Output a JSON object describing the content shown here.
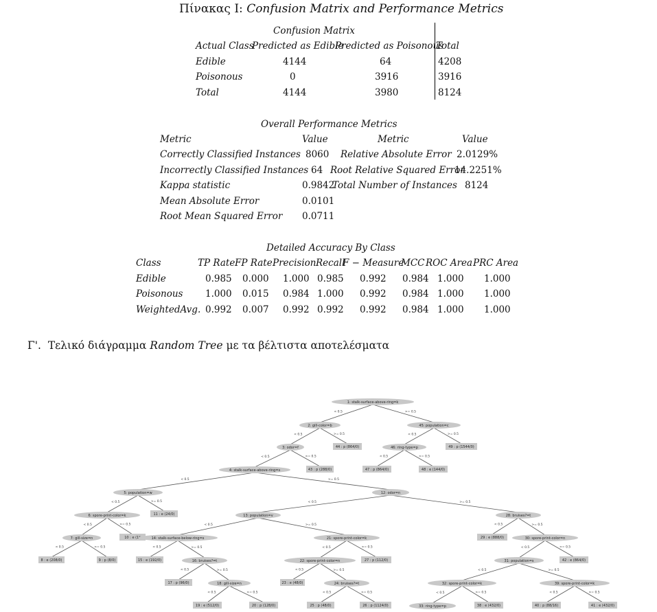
{
  "table_title": {
    "prefix": "Πίνακας I: ",
    "text": "Confusion Matrix and Performance Metrics"
  },
  "confusion": {
    "title": "Confusion Matrix",
    "headers": [
      "Actual Class",
      "Predicted as Edible",
      "Predicted as Poisonous",
      "Total"
    ],
    "rows": [
      [
        "Edible",
        "4144",
        "64",
        "4208"
      ],
      [
        "Poisonous",
        "0",
        "3916",
        "3916"
      ],
      [
        "Total",
        "4144",
        "3980",
        "8124"
      ]
    ]
  },
  "overall": {
    "title": "Overall Performance Metrics",
    "headers": [
      "Metric",
      "Value",
      "Metric",
      "Value"
    ],
    "left": [
      [
        "Correctly Classified Instances",
        "8060"
      ],
      [
        "Incorrectly Classified Instances",
        "64"
      ],
      [
        "Kappa statistic",
        "0.9842"
      ],
      [
        "Mean Absolute Error",
        "0.0101"
      ],
      [
        "Root Mean Squared Error",
        "0.0711"
      ]
    ],
    "right": [
      [
        "Relative Absolute Error",
        "2.0129%"
      ],
      [
        "Root Relative Squared Error",
        "14.2251%"
      ],
      [
        "Total Number of Instances",
        "8124"
      ]
    ]
  },
  "detailed": {
    "title": "Detailed Accuracy By Class",
    "headers": [
      "Class",
      "TP Rate",
      "FP Rate",
      "Precision",
      "Recall",
      "F − Measure",
      "MCC",
      "ROC Area",
      "PRC Area"
    ],
    "rows": [
      [
        "Edible",
        "0.985",
        "0.000",
        "1.000",
        "0.985",
        "0.992",
        "0.984",
        "1.000",
        "1.000"
      ],
      [
        "Poisonous",
        "1.000",
        "0.015",
        "0.984",
        "1.000",
        "0.992",
        "0.984",
        "1.000",
        "1.000"
      ],
      [
        "WeightedAvg.",
        "0.992",
        "0.007",
        "0.992",
        "0.992",
        "0.992",
        "0.984",
        "1.000",
        "1.000"
      ]
    ]
  },
  "section": {
    "number": "Γ'.",
    "text_before": "Τελικό διάγραμμα ",
    "text_italic": "Random Tree",
    "text_after": " με τα βέλτιστα αποτελέσματα"
  },
  "tree": {
    "nodes": [
      {
        "id": "n1",
        "label": "1: stalk-surface-above-ring=k",
        "shape": "oval"
      },
      {
        "id": "n2",
        "label": "2: gill-color=b",
        "shape": "oval"
      },
      {
        "id": "n45",
        "label": "45: population=c",
        "shape": "oval"
      },
      {
        "id": "n3",
        "label": "3: odor=f",
        "shape": "oval"
      },
      {
        "id": "n44",
        "label": "44 : p (864/0)",
        "shape": "box"
      },
      {
        "id": "n46",
        "label": "46: ring-type=p",
        "shape": "oval"
      },
      {
        "id": "n49",
        "label": "49 : p (1544/0)",
        "shape": "box"
      },
      {
        "id": "n4",
        "label": "4: stalk-surface-above-ring=s",
        "shape": "oval"
      },
      {
        "id": "n43",
        "label": "43 : p (288/0)",
        "shape": "box"
      },
      {
        "id": "n47",
        "label": "47 : p (864/0)",
        "shape": "box"
      },
      {
        "id": "n48",
        "label": "48 : e (144/0)",
        "shape": "box"
      },
      {
        "id": "n5",
        "label": "5: population=w",
        "shape": "oval"
      },
      {
        "id": "n12",
        "label": "12: odor=n",
        "shape": "oval"
      },
      {
        "id": "n6",
        "label": "6: spore-print-color=k",
        "shape": "oval"
      },
      {
        "id": "n11",
        "label": "11 : e (24/0)",
        "shape": "box"
      },
      {
        "id": "n13",
        "label": "13: population=v",
        "shape": "oval"
      },
      {
        "id": "n28",
        "label": "28: bruises?=t",
        "shape": "oval"
      },
      {
        "id": "n7",
        "label": "7: gill-size=n",
        "shape": "oval"
      },
      {
        "id": "n10",
        "label": "10 : e (1*",
        "shape": "box"
      },
      {
        "id": "n14",
        "label": "14: stalk-surface-below-ring=s",
        "shape": "oval"
      },
      {
        "id": "n21",
        "label": "21: spore-print-color=k",
        "shape": "oval"
      },
      {
        "id": "n29",
        "label": "29 : e (888/0)",
        "shape": "box"
      },
      {
        "id": "n30",
        "label": "30: spore-print-color=n",
        "shape": "oval"
      },
      {
        "id": "n8",
        "label": "8 : e (208/0)",
        "shape": "box"
      },
      {
        "id": "n9",
        "label": "9 : p (8/0)",
        "shape": "box"
      },
      {
        "id": "n15",
        "label": "15 : e (192/0)",
        "shape": "box"
      },
      {
        "id": "n16",
        "label": "16: bruises?=t",
        "shape": "oval"
      },
      {
        "id": "n22",
        "label": "22: spore-print-color=n",
        "shape": "oval"
      },
      {
        "id": "n27",
        "label": "27 : p (112/0)",
        "shape": "box"
      },
      {
        "id": "n31",
        "label": "31: population=s",
        "shape": "oval"
      },
      {
        "id": "n42",
        "label": "42 : e (864/0)",
        "shape": "box"
      },
      {
        "id": "n17",
        "label": "17 : p (96/0)",
        "shape": "box"
      },
      {
        "id": "n18",
        "label": "18: gill-size=n",
        "shape": "oval"
      },
      {
        "id": "n23",
        "label": "23 : e (48/0)",
        "shape": "box"
      },
      {
        "id": "n24",
        "label": "24: bruises?=t",
        "shape": "oval"
      },
      {
        "id": "n32",
        "label": "32: spore-print-color=k",
        "shape": "oval"
      },
      {
        "id": "n39",
        "label": "39: spore-print-color=k",
        "shape": "oval"
      },
      {
        "id": "n19",
        "label": "19 : e (512/0)",
        "shape": "box"
      },
      {
        "id": "n20",
        "label": "20 : p (128/0)",
        "shape": "box"
      },
      {
        "id": "n25",
        "label": "25 : p (48/0)",
        "shape": "box"
      },
      {
        "id": "n26",
        "label": "26 : p (1124/0)",
        "shape": "box"
      },
      {
        "id": "n33",
        "label": "33: ring-type=p",
        "shape": "oval"
      },
      {
        "id": "n38",
        "label": "38 : e (432/0)",
        "shape": "box"
      },
      {
        "id": "n40",
        "label": "40 : p (88/16)",
        "shape": "box"
      },
      {
        "id": "n41",
        "label": "41 : e (432/0)",
        "shape": "box"
      }
    ],
    "edges": [
      [
        "n1",
        "n2",
        "< 0.5"
      ],
      [
        "n1",
        "n45",
        ">= 0.5"
      ],
      [
        "n2",
        "n3",
        "< 0.5"
      ],
      [
        "n2",
        "n44",
        ">= 0.5"
      ],
      [
        "n45",
        "n46",
        "< 0.5"
      ],
      [
        "n45",
        "n49",
        ">= 0.5"
      ],
      [
        "n3",
        "n4",
        "< 0.5"
      ],
      [
        "n3",
        "n43",
        ">= 0.5"
      ],
      [
        "n46",
        "n47",
        "< 0.5"
      ],
      [
        "n46",
        "n48",
        ">= 0.5"
      ],
      [
        "n4",
        "n5",
        "< 0.5"
      ],
      [
        "n4",
        "n12",
        ">= 0.5"
      ],
      [
        "n5",
        "n6",
        "< 0.5"
      ],
      [
        "n5",
        "n11",
        ">= 0.5"
      ],
      [
        "n12",
        "n13",
        "< 0.5"
      ],
      [
        "n12",
        "n28",
        ">= 0.5"
      ],
      [
        "n6",
        "n7",
        "< 0.5"
      ],
      [
        "n6",
        "n10",
        ">= 0.5"
      ],
      [
        "n13",
        "n14",
        "< 0.5"
      ],
      [
        "n13",
        "n21",
        ">= 0.5"
      ],
      [
        "n28",
        "n29",
        "< 0.5"
      ],
      [
        "n28",
        "n30",
        ">= 0.5"
      ],
      [
        "n7",
        "n8",
        "< 0.5"
      ],
      [
        "n7",
        "n9",
        ">= 0.5"
      ],
      [
        "n14",
        "n15",
        "< 0.5"
      ],
      [
        "n14",
        "n16",
        ">= 0.5"
      ],
      [
        "n21",
        "n22",
        "< 0.5"
      ],
      [
        "n21",
        "n27",
        ">= 0.5"
      ],
      [
        "n30",
        "n31",
        "< 0.5"
      ],
      [
        "n30",
        "n42",
        ">= 0.5"
      ],
      [
        "n16",
        "n17",
        "< 0.5"
      ],
      [
        "n16",
        "n18",
        ">= 0.5"
      ],
      [
        "n22",
        "n23",
        "< 0.5"
      ],
      [
        "n22",
        "n24",
        ">= 0.5"
      ],
      [
        "n31",
        "n32",
        "< 0.5"
      ],
      [
        "n31",
        "n39",
        ">= 0.5"
      ],
      [
        "n18",
        "n19",
        "< 0.5"
      ],
      [
        "n18",
        "n20",
        ">= 0.5"
      ],
      [
        "n24",
        "n25",
        "< 0.5"
      ],
      [
        "n24",
        "n26",
        ">= 0.5"
      ],
      [
        "n32",
        "n33",
        "< 0.5"
      ],
      [
        "n32",
        "n38",
        ">= 0.5"
      ],
      [
        "n39",
        "n40",
        "< 0.5"
      ],
      [
        "n39",
        "n41",
        ">= 0.5"
      ]
    ]
  }
}
